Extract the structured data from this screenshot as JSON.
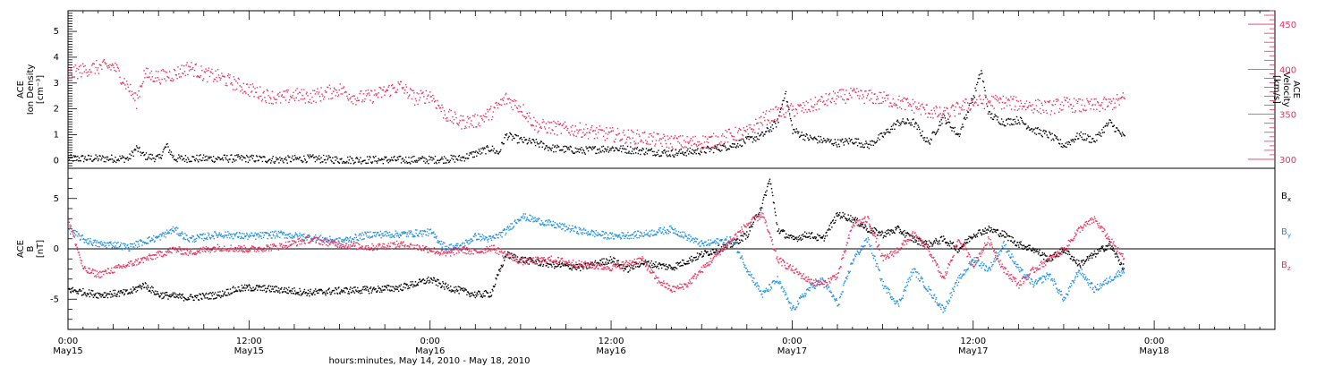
{
  "figure": {
    "xlabel": "hours:minutes, May 14, 2010 - May 18, 2010",
    "x_ticks": [
      {
        "hours": 24,
        "line1": "0:00",
        "line2": "May15"
      },
      {
        "hours": 36,
        "line1": "12:00",
        "line2": "May15"
      },
      {
        "hours": 48,
        "line1": "0:00",
        "line2": "May16"
      },
      {
        "hours": 60,
        "line1": "12:00",
        "line2": "May16"
      },
      {
        "hours": 72,
        "line1": "0:00",
        "line2": "May17"
      },
      {
        "hours": 84,
        "line1": "12:00",
        "line2": "May17"
      },
      {
        "hours": 96,
        "line1": "0:00",
        "line2": "May18"
      }
    ],
    "xlim_hours": [
      24,
      104
    ],
    "colors": {
      "black": "#000000",
      "red": "#e8335e",
      "blue": "#1f8fe6"
    }
  },
  "chart_data": [
    {
      "type": "scatter",
      "panel": "top",
      "ylabel_left": [
        "ACE",
        "Ion Density",
        "[cm⁻³]"
      ],
      "ylabel_right": [
        "ACE",
        "Velocity",
        "[km/s]"
      ],
      "ylim_left": [
        -0.3,
        5.8
      ],
      "yticks_left": [
        0,
        1,
        2,
        3,
        4,
        5
      ],
      "ylim_right": [
        290,
        465
      ],
      "yticks_right": [
        300,
        350,
        400,
        450
      ],
      "series": [
        {
          "color": "black",
          "axis": "left",
          "x": [
            24.0,
            26.0,
            28.0,
            28.5,
            29.0,
            30.0,
            30.5,
            31.0,
            32.0,
            34.0,
            36.0,
            38.0,
            40.0,
            42.0,
            44.0,
            46.0,
            48.0,
            50.0,
            51.0,
            52.0,
            52.5,
            53.0,
            54.0,
            55.0,
            56.0,
            58.0,
            60.0,
            62.0,
            64.0,
            66.0,
            68.0,
            70.0,
            71.0,
            71.5,
            72.0,
            73.0,
            74.0,
            75.0,
            76.0,
            77.0,
            78.0,
            79.0,
            80.0,
            81.0,
            82.0,
            83.0,
            84.0,
            84.5,
            85.0,
            86.0,
            87.0,
            88.0,
            89.0,
            90.0,
            91.0,
            92.0,
            93.0,
            94.0
          ],
          "y": [
            0.1,
            0.1,
            0.1,
            0.5,
            0.2,
            0.1,
            0.6,
            0.1,
            0.1,
            0.1,
            0.1,
            0.05,
            0.1,
            0.05,
            0.05,
            0.05,
            0.05,
            0.1,
            0.3,
            0.5,
            0.3,
            1.0,
            0.8,
            0.7,
            0.5,
            0.4,
            0.5,
            0.4,
            0.3,
            0.4,
            0.6,
            1.0,
            1.5,
            2.7,
            1.2,
            0.9,
            0.8,
            0.7,
            0.8,
            0.6,
            1.0,
            1.5,
            1.5,
            0.7,
            1.7,
            1.0,
            2.5,
            3.5,
            1.8,
            1.5,
            1.6,
            1.2,
            1.0,
            0.6,
            1.0,
            0.8,
            1.5,
            0.9
          ]
        },
        {
          "color": "red",
          "axis": "right",
          "x": [
            24.0,
            25.0,
            26.0,
            27.0,
            28.0,
            28.5,
            29.0,
            30.0,
            31.0,
            32.0,
            33.0,
            34.0,
            35.0,
            36.0,
            37.0,
            38.0,
            39.0,
            40.0,
            41.0,
            42.0,
            43.0,
            44.0,
            45.0,
            46.0,
            47.0,
            48.0,
            49.0,
            50.0,
            51.0,
            52.0,
            53.0,
            54.0,
            55.0,
            56.0,
            57.0,
            58.0,
            59.0,
            60.0,
            61.0,
            62.0,
            63.0,
            64.0,
            65.0,
            66.0,
            67.0,
            68.0,
            69.0,
            70.0,
            71.0,
            72.0,
            73.0,
            74.0,
            75.0,
            76.0,
            77.0,
            78.0,
            79.0,
            80.0,
            81.0,
            82.0,
            83.0,
            84.0,
            85.0,
            86.0,
            87.0,
            88.0,
            89.0,
            90.0,
            91.0,
            92.0,
            93.0,
            94.0
          ],
          "y": [
            395,
            400,
            403,
            404,
            380,
            365,
            395,
            392,
            395,
            403,
            395,
            392,
            385,
            378,
            372,
            368,
            372,
            370,
            374,
            378,
            369,
            370,
            376,
            382,
            368,
            372,
            350,
            342,
            343,
            352,
            368,
            358,
            338,
            336,
            334,
            333,
            330,
            328,
            326,
            325,
            322,
            320,
            319,
            320,
            322,
            328,
            330,
            345,
            352,
            355,
            358,
            365,
            370,
            372,
            370,
            368,
            364,
            360,
            354,
            350,
            357,
            364,
            365,
            364,
            362,
            360,
            358,
            362,
            360,
            360,
            362,
            368
          ]
        }
      ]
    },
    {
      "type": "scatter",
      "panel": "bottom",
      "ylabel_left": [
        "ACE",
        "B",
        "[nT]"
      ],
      "ylim": [
        -8,
        8
      ],
      "yticks": [
        -5,
        0,
        5
      ],
      "zero_line": true,
      "legend": [
        {
          "label": "B",
          "subscript": "x",
          "color": "black"
        },
        {
          "label": "B",
          "subscript": "y",
          "color": "blue"
        },
        {
          "label": "B",
          "subscript": "z",
          "color": "red"
        }
      ],
      "series": [
        {
          "name": "Bx",
          "color": "black",
          "x": [
            24.0,
            26.0,
            28.0,
            29.0,
            30.0,
            32.0,
            34.0,
            35.0,
            36.0,
            38.0,
            40.0,
            42.0,
            44.0,
            46.0,
            48.0,
            49.0,
            50.0,
            51.0,
            52.0,
            53.0,
            54.0,
            56.0,
            58.0,
            60.0,
            61.0,
            62.0,
            64.0,
            66.0,
            68.0,
            69.0,
            70.0,
            70.5,
            71.0,
            72.0,
            73.0,
            74.0,
            75.0,
            76.0,
            77.0,
            78.0,
            79.0,
            80.0,
            81.0,
            82.0,
            83.0,
            84.0,
            85.0,
            86.0,
            87.0,
            88.0,
            89.0,
            90.0,
            91.0,
            92.0,
            93.0,
            94.0
          ],
          "y": [
            -4.0,
            -4.5,
            -4.3,
            -3.5,
            -4.5,
            -4.8,
            -4.5,
            -4.0,
            -3.8,
            -4.0,
            -4.3,
            -4.1,
            -4.0,
            -3.8,
            -3.0,
            -3.7,
            -4.1,
            -4.5,
            -4.4,
            -0.5,
            -1.0,
            -1.5,
            -1.8,
            -1.0,
            -2.0,
            -1.3,
            -1.8,
            -0.5,
            0.5,
            1.5,
            4.5,
            7.0,
            2.0,
            1.0,
            1.5,
            1.0,
            3.5,
            3.0,
            2.0,
            1.5,
            2.0,
            1.0,
            0.5,
            1.0,
            0.0,
            1.5,
            2.0,
            1.5,
            0.5,
            0.0,
            -1.0,
            0.0,
            -1.5,
            -0.5,
            0.5,
            -2.0
          ]
        },
        {
          "name": "By",
          "color": "blue",
          "x": [
            24.0,
            25.0,
            26.0,
            27.0,
            28.0,
            29.0,
            30.0,
            31.0,
            32.0,
            34.0,
            36.0,
            38.0,
            40.0,
            42.0,
            44.0,
            46.0,
            48.0,
            49.0,
            50.0,
            51.0,
            52.0,
            53.0,
            54.0,
            56.0,
            58.0,
            60.0,
            62.0,
            64.0,
            66.0,
            68.0,
            69.0,
            70.0,
            71.0,
            72.0,
            73.0,
            74.0,
            75.0,
            76.0,
            77.0,
            78.0,
            79.0,
            80.0,
            81.0,
            82.0,
            83.0,
            84.0,
            85.0,
            86.0,
            87.0,
            88.0,
            89.0,
            90.0,
            91.0,
            92.0,
            93.0,
            94.0
          ],
          "y": [
            2.0,
            1.0,
            0.5,
            0.5,
            0.2,
            0.8,
            1.2,
            2.0,
            1.0,
            1.5,
            1.3,
            1.5,
            1.2,
            0.8,
            1.5,
            1.5,
            1.7,
            0.2,
            0.3,
            1.3,
            1.0,
            1.8,
            3.3,
            2.5,
            1.8,
            1.3,
            1.5,
            2.0,
            0.5,
            1.0,
            -2.0,
            -4.5,
            -3.0,
            -6.0,
            -4.0,
            -3.0,
            -5.5,
            -1.0,
            1.0,
            -3.5,
            -5.5,
            -2.0,
            -4.0,
            -6.0,
            -3.0,
            -1.0,
            -2.0,
            0.5,
            -2.0,
            -3.5,
            -2.5,
            -5.0,
            -2.0,
            -4.0,
            -3.0,
            -2.0
          ]
        },
        {
          "name": "Bz",
          "color": "red",
          "x": [
            24.0,
            25.0,
            26.0,
            27.0,
            28.0,
            29.0,
            30.0,
            31.0,
            32.0,
            34.0,
            36.0,
            38.0,
            40.0,
            42.0,
            44.0,
            46.0,
            48.0,
            49.0,
            50.0,
            51.0,
            52.0,
            53.0,
            54.0,
            56.0,
            58.0,
            60.0,
            62.0,
            63.0,
            64.0,
            65.0,
            66.0,
            67.0,
            68.0,
            69.0,
            70.0,
            71.0,
            72.0,
            73.0,
            74.0,
            75.0,
            76.0,
            77.0,
            78.0,
            79.0,
            80.0,
            81.0,
            82.0,
            83.0,
            84.0,
            85.0,
            86.0,
            87.0,
            88.0,
            89.0,
            90.0,
            91.0,
            92.0,
            93.0,
            94.0
          ],
          "y": [
            3.0,
            -2.0,
            -2.5,
            -2.0,
            -1.5,
            -1.0,
            -0.5,
            0.0,
            -0.3,
            0.2,
            0.0,
            0.3,
            1.0,
            0.5,
            0.2,
            0.5,
            0.0,
            -0.5,
            0.0,
            -0.3,
            0.2,
            -0.5,
            -1.2,
            -1.0,
            -1.5,
            -1.8,
            -1.0,
            -3.0,
            -4.0,
            -3.5,
            -2.0,
            -0.5,
            1.0,
            2.5,
            3.5,
            -1.0,
            -2.0,
            -3.0,
            -3.5,
            -2.5,
            2.5,
            3.0,
            -1.0,
            0.0,
            1.5,
            0.0,
            -3.0,
            1.0,
            -1.5,
            1.0,
            -2.0,
            -3.5,
            -2.0,
            -1.0,
            0.0,
            2.0,
            3.0,
            1.0,
            -1.0
          ]
        }
      ]
    }
  ]
}
